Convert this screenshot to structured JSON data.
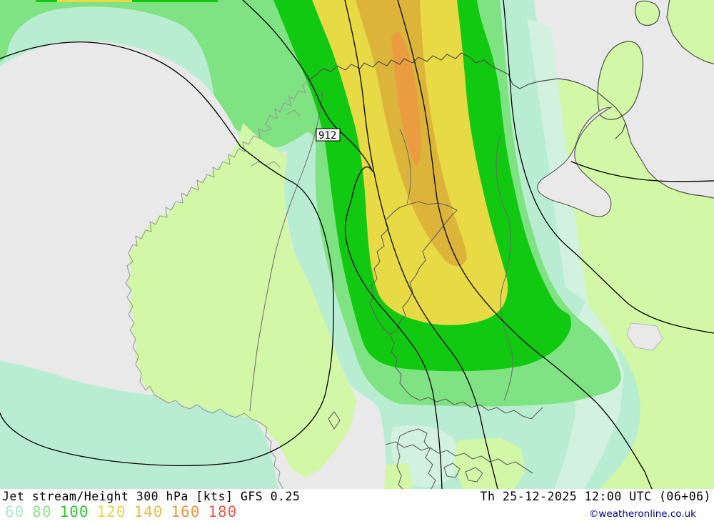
{
  "map": {
    "height_label": "912",
    "description": "Jet stream / 300 hPa height forecast map over Scandinavia"
  },
  "caption": {
    "parameter": "Jet stream/Height 300 hPa [kts] GFS 0.25",
    "datetime": "Th 25-12-2025 12:00 UTC (06+06)",
    "copyright": "©weatheronline.co.uk"
  },
  "legend": {
    "values": [
      {
        "label": "60",
        "color": "#aee9c6"
      },
      {
        "label": "80",
        "color": "#8fe28f"
      },
      {
        "label": "100",
        "color": "#2bc92b"
      },
      {
        "label": "120",
        "color": "#e2d747"
      },
      {
        "label": "140",
        "color": "#e2bd4a"
      },
      {
        "label": "160",
        "color": "#e69740"
      },
      {
        "label": "180",
        "color": "#e85a4e"
      }
    ]
  },
  "palette": {
    "sea": "#e9e9e9",
    "land": "#d2f7a6",
    "kts60": "#b9edd2",
    "kts60_light": "#d3f1df",
    "kts80": "#7fe283",
    "kts100": "#12c912",
    "kts120": "#e8da44",
    "kts140": "#dcb43a",
    "kts160": "#ec9c40",
    "copyright_blue": "#00008b"
  }
}
